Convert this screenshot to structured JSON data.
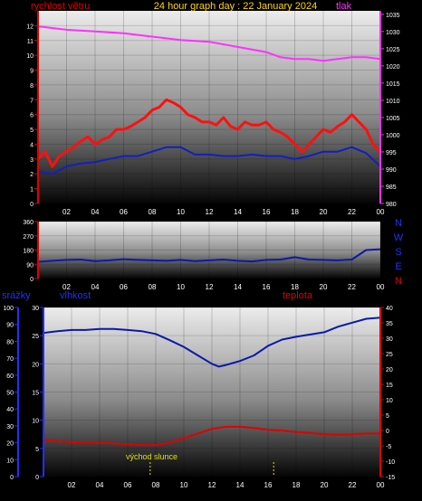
{
  "header": {
    "wind_label": "rychlost větru",
    "title": "24 hour graph day : 22 January 2024",
    "pressure_label": "tlak"
  },
  "colors": {
    "wind": "#ff1010",
    "wind_avg": "#1020c0",
    "pressure": "#ff30ff",
    "direction": "#0a1aa8",
    "humidity": "#0a1aa8",
    "temperature": "#e00000",
    "title": "#ffd800",
    "axis_left": "#e00000",
    "axis_blue": "#2030ff",
    "tick_text": "#ffffff",
    "sun_marker": "#e8e000"
  },
  "direction_labels": [
    "N",
    "W",
    "S",
    "E",
    "N"
  ],
  "bottom_labels": {
    "rain": "srážky",
    "humidity": "vlhkost",
    "temperature": "teplota",
    "sunrise": "východ slunce"
  },
  "chart_data": [
    {
      "type": "line",
      "title": "24 hour graph day : 22 January 2024",
      "x_ticks": [
        "02",
        "04",
        "06",
        "08",
        "10",
        "12",
        "14",
        "16",
        "18",
        "20",
        "22",
        "00"
      ],
      "xlim": [
        0,
        24
      ],
      "y_left": {
        "label": "rychlost větru",
        "ticks": [
          0,
          1,
          2,
          3,
          4,
          5,
          6,
          7,
          8,
          9,
          10,
          11,
          12
        ],
        "ylim": [
          0,
          13
        ]
      },
      "y_right": {
        "label": "tlak",
        "ticks": [
          980,
          985,
          990,
          995,
          1000,
          1005,
          1010,
          1015,
          1020,
          1025,
          1030,
          1035
        ],
        "ylim": [
          980,
          1036
        ]
      },
      "series": [
        {
          "name": "rychlost větru",
          "x": [
            0,
            0.5,
            1,
            1.5,
            2,
            2.5,
            3,
            3.5,
            4,
            4.5,
            5,
            5.5,
            6,
            6.5,
            7,
            7.5,
            8,
            8.5,
            9,
            9.5,
            10,
            10.5,
            11,
            11.5,
            12,
            12.5,
            13,
            13.5,
            14,
            14.5,
            15,
            15.5,
            16,
            16.5,
            17,
            17.5,
            18,
            18.5,
            19,
            19.5,
            20,
            20.5,
            21,
            21.5,
            22,
            22.5,
            23,
            23.5,
            24
          ],
          "values": [
            3,
            3.5,
            2.5,
            3.2,
            3.5,
            3.8,
            4.2,
            4.5,
            4,
            4.3,
            4.5,
            5,
            5,
            5.2,
            5.5,
            5.8,
            6.3,
            6.5,
            7,
            6.8,
            6.5,
            6,
            5.8,
            5.5,
            5.5,
            5.3,
            5.8,
            5.2,
            5,
            5.5,
            5.3,
            5.3,
            5.5,
            5,
            4.8,
            4.5,
            4,
            3.5,
            4,
            4.5,
            5,
            4.8,
            5.2,
            5.5,
            6,
            5.5,
            5,
            4,
            3.5
          ]
        },
        {
          "name": "",
          "x": [
            0,
            1,
            2,
            3,
            4,
            5,
            6,
            7,
            8,
            9,
            10,
            11,
            12,
            13,
            14,
            15,
            16,
            17,
            18,
            19,
            20,
            21,
            22,
            23,
            24
          ],
          "values": [
            2.2,
            2,
            2.5,
            2.7,
            2.8,
            3,
            3.2,
            3.2,
            3.5,
            3.8,
            3.8,
            3.3,
            3.3,
            3.2,
            3.2,
            3.3,
            3.2,
            3.2,
            3,
            3.2,
            3.5,
            3.5,
            3.8,
            3.4,
            2.5
          ]
        },
        {
          "name": "tlak",
          "x": [
            0,
            2,
            4,
            6,
            8,
            10,
            12,
            14,
            16,
            17,
            18,
            19,
            20,
            21,
            22,
            23,
            24
          ],
          "values": [
            1031.5,
            1030.5,
            1030,
            1029.5,
            1028.5,
            1027.5,
            1027,
            1025.5,
            1024,
            1022.5,
            1022,
            1022,
            1021.5,
            1022,
            1022.5,
            1022.5,
            1022
          ]
        }
      ]
    },
    {
      "type": "line",
      "title": "",
      "x_ticks": [
        "02",
        "04",
        "06",
        "08",
        "10",
        "12",
        "14",
        "16",
        "18",
        "20",
        "22",
        "00"
      ],
      "xlim": [
        0,
        24
      ],
      "y_left": {
        "ticks": [
          0,
          90,
          180,
          270,
          360
        ],
        "ylim": [
          0,
          360
        ]
      },
      "series": [
        {
          "name": "",
          "x": [
            0,
            1,
            2,
            3,
            4,
            5,
            6,
            7,
            8,
            9,
            10,
            11,
            12,
            13,
            14,
            15,
            16,
            17,
            18,
            19,
            20,
            21,
            22,
            23,
            24
          ],
          "values": [
            105,
            112,
            118,
            120,
            110,
            115,
            122,
            118,
            115,
            112,
            118,
            110,
            115,
            120,
            112,
            108,
            118,
            120,
            135,
            120,
            118,
            115,
            120,
            180,
            185
          ]
        }
      ]
    },
    {
      "type": "line",
      "title": "",
      "x_ticks": [
        "02",
        "04",
        "06",
        "08",
        "10",
        "12",
        "14",
        "16",
        "18",
        "20",
        "22",
        "00"
      ],
      "xlim": [
        0,
        24
      ],
      "y_axis_rain": {
        "label": "srážky",
        "ticks": [
          0,
          10,
          20,
          30,
          40,
          50,
          60,
          70,
          80,
          90,
          100
        ],
        "ylim": [
          0,
          100
        ]
      },
      "y_axis_humidity": {
        "label": "vlhkost",
        "ticks": [
          0,
          5,
          10,
          15,
          20,
          25,
          30
        ],
        "ylim": [
          0,
          30
        ]
      },
      "y_right": {
        "label": "teplota",
        "ticks": [
          -15,
          -10,
          -5,
          0,
          5,
          10,
          15,
          20,
          25,
          30,
          35,
          40
        ],
        "ylim": [
          -15,
          40
        ]
      },
      "annotations": [
        "východ slunce"
      ],
      "series": [
        {
          "name": "vlhkost",
          "x": [
            0,
            1,
            2,
            3,
            4,
            5,
            6,
            7,
            8,
            9,
            10,
            11,
            12,
            12.5,
            13,
            14,
            15,
            16,
            17,
            18,
            19,
            20,
            21,
            22,
            23,
            24
          ],
          "values": [
            25.5,
            25.8,
            26,
            26,
            26.2,
            26.2,
            26,
            25.8,
            25.3,
            24.2,
            23,
            21.5,
            20,
            19.5,
            19.8,
            20.5,
            21.5,
            23.2,
            24.3,
            24.8,
            25.2,
            25.6,
            26.6,
            27.3,
            28,
            28.2
          ]
        },
        {
          "name": "teplota",
          "x": [
            0,
            1,
            2,
            3,
            4,
            5,
            6,
            7,
            8,
            9,
            10,
            11,
            12,
            13,
            14,
            15,
            16,
            17,
            18,
            19,
            20,
            21,
            22,
            23,
            24
          ],
          "values": [
            -3,
            -3.5,
            -3.8,
            -4,
            -4,
            -4.2,
            -4.5,
            -4.8,
            -4.8,
            -4,
            -2.5,
            -1,
            0.5,
            1.2,
            1.2,
            0.8,
            0.2,
            0,
            -0.5,
            -0.8,
            -1.2,
            -1.4,
            -1.2,
            -1,
            -1
          ]
        }
      ]
    }
  ]
}
